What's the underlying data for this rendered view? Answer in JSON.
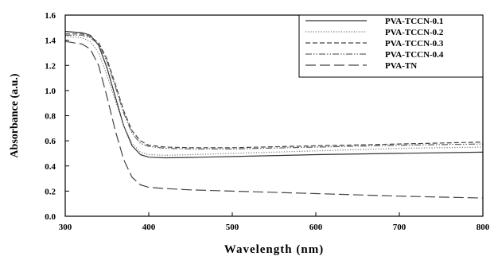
{
  "chart_data": {
    "type": "line",
    "xlabel": "Wavelength (nm)",
    "ylabel": "Absorbance (a.u.)",
    "xlim": [
      300,
      800
    ],
    "ylim": [
      0.0,
      1.6
    ],
    "xticks": [
      300,
      400,
      500,
      600,
      700,
      800
    ],
    "yticks": [
      0.0,
      0.2,
      0.4,
      0.6,
      0.8,
      1.0,
      1.2,
      1.4,
      1.6
    ],
    "ytick_labels": [
      "0.0",
      "0.2",
      "0.4",
      "0.6",
      "0.8",
      "1.0",
      "1.2",
      "1.4",
      "1.6"
    ],
    "grid": false,
    "legend_position": "top-right",
    "series": [
      {
        "name": "PVA-TCCN-0.1",
        "style": "solid",
        "x": [
          300,
          320,
          330,
          340,
          350,
          360,
          370,
          380,
          390,
          400,
          420,
          450,
          500,
          600,
          700,
          800
        ],
        "y": [
          1.47,
          1.46,
          1.44,
          1.36,
          1.18,
          0.95,
          0.72,
          0.56,
          0.49,
          0.47,
          0.465,
          0.468,
          0.475,
          0.49,
          0.5,
          0.51
        ]
      },
      {
        "name": "PVA-TCCN-0.2",
        "style": "dotted",
        "x": [
          300,
          320,
          330,
          340,
          350,
          360,
          370,
          380,
          390,
          400,
          420,
          450,
          500,
          600,
          700,
          800
        ],
        "y": [
          1.43,
          1.42,
          1.39,
          1.3,
          1.12,
          0.92,
          0.72,
          0.58,
          0.51,
          0.49,
          0.485,
          0.49,
          0.5,
          0.52,
          0.54,
          0.55
        ]
      },
      {
        "name": "PVA-TCCN-0.3",
        "style": "short-dash",
        "x": [
          300,
          320,
          330,
          340,
          350,
          360,
          370,
          380,
          390,
          400,
          420,
          450,
          500,
          600,
          700,
          800
        ],
        "y": [
          1.45,
          1.45,
          1.43,
          1.38,
          1.25,
          1.05,
          0.84,
          0.68,
          0.6,
          0.565,
          0.55,
          0.545,
          0.545,
          0.56,
          0.575,
          0.59
        ]
      },
      {
        "name": "PVA-TCCN-0.4",
        "style": "dash-dot-dot",
        "x": [
          300,
          320,
          330,
          340,
          350,
          360,
          370,
          380,
          390,
          400,
          420,
          450,
          500,
          600,
          700,
          800
        ],
        "y": [
          1.44,
          1.44,
          1.42,
          1.37,
          1.23,
          1.03,
          0.82,
          0.66,
          0.58,
          0.555,
          0.54,
          0.535,
          0.535,
          0.55,
          0.565,
          0.575
        ]
      },
      {
        "name": "PVA-TN",
        "style": "long-dash",
        "x": [
          300,
          320,
          330,
          340,
          350,
          360,
          370,
          380,
          390,
          400,
          420,
          450,
          500,
          600,
          700,
          800
        ],
        "y": [
          1.39,
          1.37,
          1.33,
          1.2,
          0.95,
          0.68,
          0.45,
          0.31,
          0.25,
          0.23,
          0.22,
          0.21,
          0.2,
          0.18,
          0.16,
          0.145
        ]
      }
    ]
  }
}
